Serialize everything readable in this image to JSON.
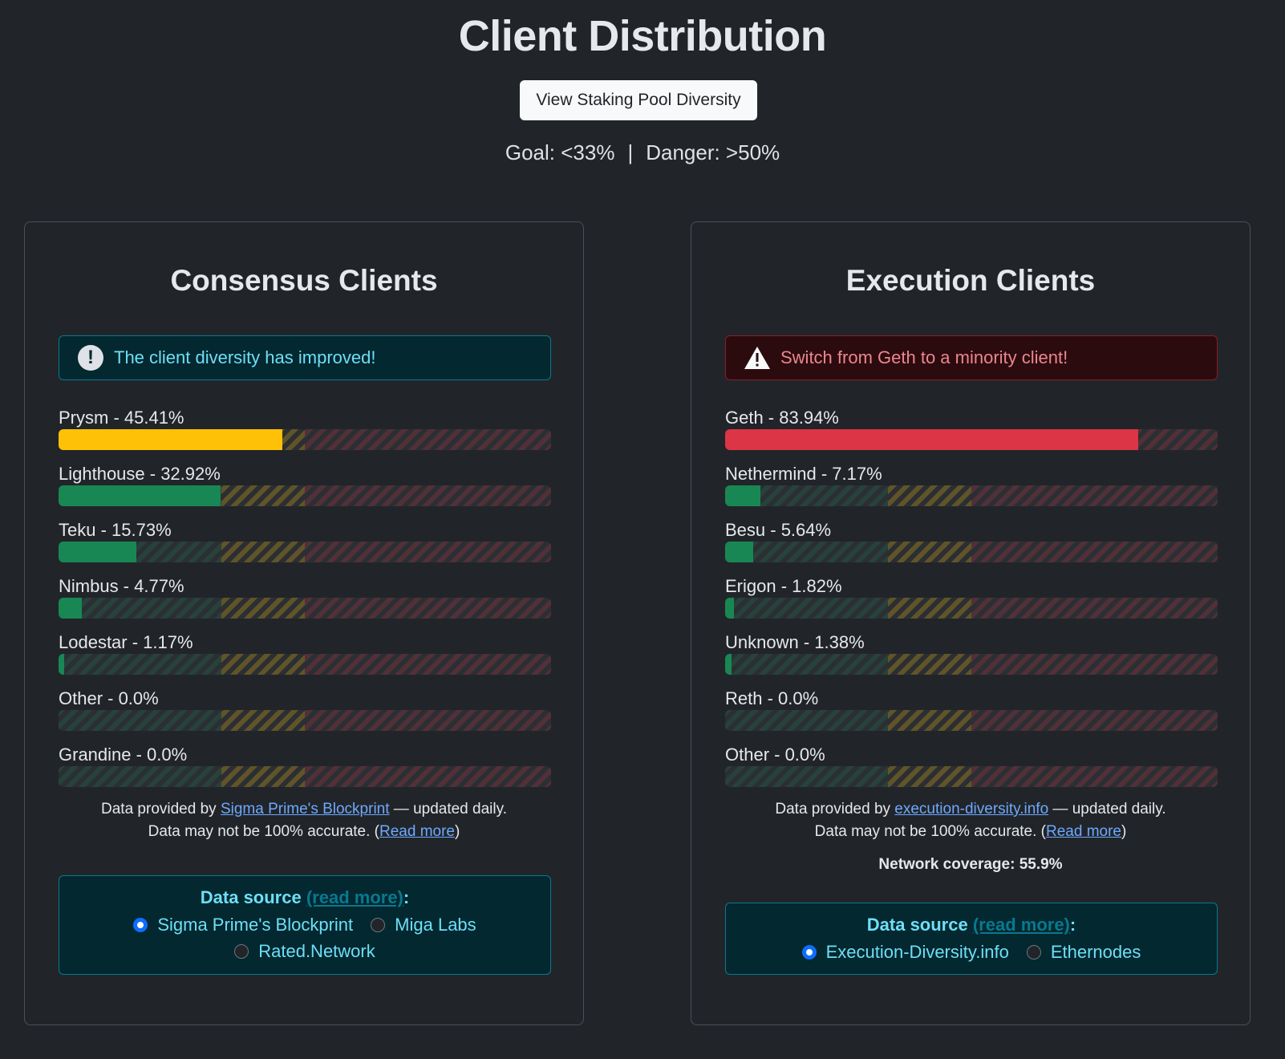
{
  "header": {
    "title": "Client Distribution",
    "pool_button": "View Staking Pool Diversity",
    "goal": "Goal: <33%",
    "separator": "|",
    "danger": "Danger: >50%"
  },
  "colors": {
    "good": "#198754",
    "warning": "#ffc107",
    "danger": "#dc3545"
  },
  "consensus": {
    "title": "Consensus Clients",
    "alert": {
      "type": "info",
      "icon": "exclamation-circle-icon",
      "text": "The client diversity has improved!"
    },
    "clients": [
      {
        "label": "Prysm - 45.41%",
        "value": 45.41,
        "color": "#ffc107"
      },
      {
        "label": "Lighthouse - 32.92%",
        "value": 32.92,
        "color": "#198754"
      },
      {
        "label": "Teku - 15.73%",
        "value": 15.73,
        "color": "#198754"
      },
      {
        "label": "Nimbus - 4.77%",
        "value": 4.77,
        "color": "#198754"
      },
      {
        "label": "Lodestar - 1.17%",
        "value": 1.17,
        "color": "#198754"
      },
      {
        "label": "Other - 0.0%",
        "value": 0.0,
        "color": "#198754"
      },
      {
        "label": "Grandine - 0.0%",
        "value": 0.0,
        "color": "#198754"
      }
    ],
    "footnote": {
      "prefix": "Data provided by ",
      "link": "Sigma Prime's Blockprint",
      "suffix": " — updated daily.",
      "accuracy": "Data may not be 100% accurate. (",
      "read_more": "Read more",
      "close": ")"
    },
    "source": {
      "title": "Data source",
      "read_more": "(read more)",
      "colon": ":",
      "options": [
        {
          "label": "Sigma Prime's Blockprint",
          "selected": true
        },
        {
          "label": "Miga Labs",
          "selected": false
        },
        {
          "label": "Rated.Network",
          "selected": false
        }
      ]
    }
  },
  "execution": {
    "title": "Execution Clients",
    "alert": {
      "type": "danger",
      "icon": "warning-triangle-icon",
      "text": "Switch from Geth to a minority client!"
    },
    "clients": [
      {
        "label": "Geth - 83.94%",
        "value": 83.94,
        "color": "#dc3545"
      },
      {
        "label": "Nethermind - 7.17%",
        "value": 7.17,
        "color": "#198754"
      },
      {
        "label": "Besu - 5.64%",
        "value": 5.64,
        "color": "#198754"
      },
      {
        "label": "Erigon - 1.82%",
        "value": 1.82,
        "color": "#198754"
      },
      {
        "label": "Unknown - 1.38%",
        "value": 1.38,
        "color": "#198754"
      },
      {
        "label": "Reth - 0.0%",
        "value": 0.0,
        "color": "#198754"
      },
      {
        "label": "Other - 0.0%",
        "value": 0.0,
        "color": "#198754"
      }
    ],
    "footnote": {
      "prefix": "Data provided by ",
      "link": "execution-diversity.info",
      "suffix": " — updated daily.",
      "accuracy": "Data may not be 100% accurate. (",
      "read_more": "Read more",
      "close": ")"
    },
    "coverage": "Network coverage: 55.9%",
    "source": {
      "title": "Data source",
      "read_more": "(read more)",
      "colon": ":",
      "options": [
        {
          "label": "Execution-Diversity.info",
          "selected": true
        },
        {
          "label": "Ethernodes",
          "selected": false
        }
      ]
    }
  }
}
